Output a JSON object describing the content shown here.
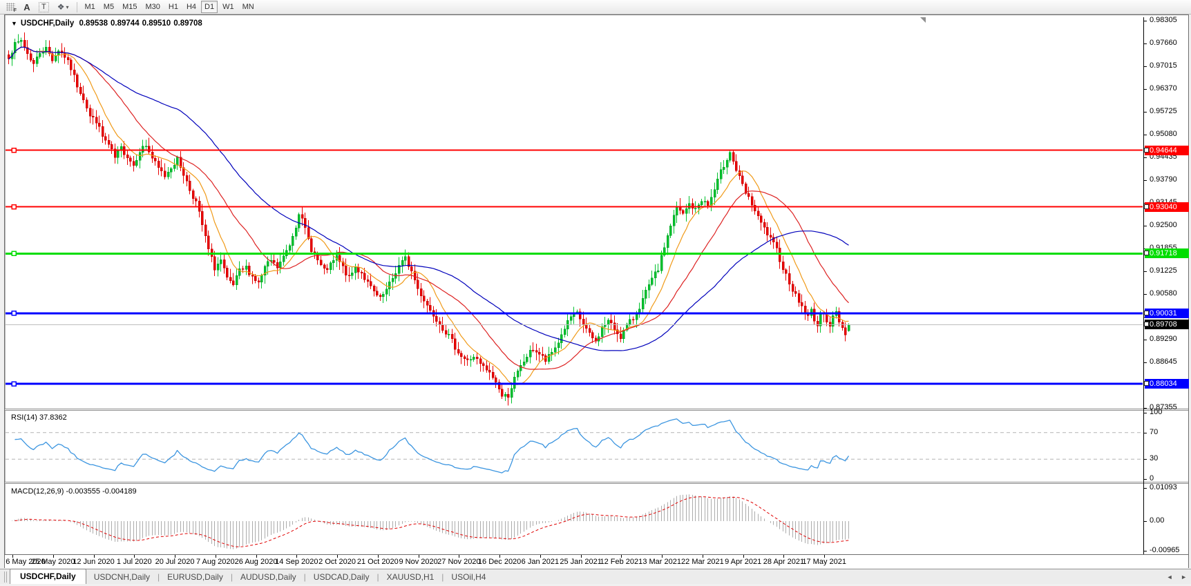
{
  "toolbar": {
    "icons": {
      "f": "F",
      "a": "A",
      "t": "T",
      "obj": "❖",
      "caret": "▾"
    },
    "timeframes": [
      {
        "label": "M1",
        "active": false
      },
      {
        "label": "M5",
        "active": false
      },
      {
        "label": "M15",
        "active": false
      },
      {
        "label": "M30",
        "active": false
      },
      {
        "label": "H1",
        "active": false
      },
      {
        "label": "H4",
        "active": false
      },
      {
        "label": "D1",
        "active": true
      },
      {
        "label": "W1",
        "active": false
      },
      {
        "label": "MN",
        "active": false
      }
    ]
  },
  "chart": {
    "title": {
      "arrow": "▼",
      "symbol": "USDCHF,Daily",
      "open": "0.89538",
      "high": "0.89744",
      "low": "0.89510",
      "close": "0.89708"
    }
  },
  "price_axis": {
    "ticks": [
      "0.98305",
      "0.97660",
      "0.97015",
      "0.96370",
      "0.95725",
      "0.95080",
      "0.94435",
      "0.93790",
      "0.93145",
      "0.92500",
      "0.91855",
      "0.91225",
      "0.90580",
      "0.89935",
      "0.89290",
      "0.88645",
      "0.88000",
      "0.87355"
    ]
  },
  "rsi": {
    "label": "RSI(14) 37.8362",
    "value": 37.8362,
    "ticks": [
      {
        "v": 100,
        "label": "100"
      },
      {
        "v": 70,
        "label": "70"
      },
      {
        "v": 30,
        "label": "30"
      },
      {
        "v": 0,
        "label": "0"
      }
    ],
    "levels": [
      70,
      30
    ],
    "color": "#3b95e0"
  },
  "macd": {
    "label": "MACD(12,26,9) -0.003555 -0.004189",
    "values": [
      -0.003555,
      -0.004189
    ],
    "ticks": [
      {
        "v": 0.01093,
        "label": "0.01093"
      },
      {
        "v": 0,
        "label": "0.00"
      },
      {
        "v": -0.00965,
        "label": "-0.00965"
      }
    ],
    "hist_color": "#ababab",
    "signal_color": "#e00000"
  },
  "tabs": {
    "items": [
      {
        "label": "USDCHF,Daily",
        "active": true
      },
      {
        "label": "USDCNH,Daily",
        "active": false
      },
      {
        "label": "EURUSD,Daily",
        "active": false
      },
      {
        "label": "AUDUSD,Daily",
        "active": false
      },
      {
        "label": "USDCAD,Daily",
        "active": false
      },
      {
        "label": "XAUUSD,H1",
        "active": false
      },
      {
        "label": "USOil,H4",
        "active": false
      }
    ],
    "scroll_left": "◄",
    "scroll_right": "►"
  },
  "chart_data": {
    "type": "candlestick",
    "symbol": "USDCHF",
    "timeframe": "Daily",
    "title": "USDCHF,Daily",
    "ylim": [
      0.87355,
      0.98305
    ],
    "bars": 270,
    "x_labels": [
      "6 May 2020",
      "25 May 2020",
      "12 Jun 2020",
      "1 Jul 2020",
      "20 Jul 2020",
      "7 Aug 2020",
      "26 Aug 2020",
      "14 Sep 2020",
      "2 Oct 2020",
      "21 Oct 2020",
      "9 Nov 2020",
      "27 Nov 2020",
      "16 Dec 2020",
      "6 Jan 2021",
      "25 Jan 2021",
      "12 Feb 2021",
      "3 Mar 2021",
      "22 Mar 2021",
      "9 Apr 2021",
      "28 Apr 2021",
      "17 May 2021"
    ],
    "last_ohlc": {
      "open": 0.89538,
      "high": 0.89744,
      "low": 0.8951,
      "close": 0.89708
    },
    "close_path_anchors": [
      [
        0,
        0.973
      ],
      [
        2,
        0.9762
      ],
      [
        4,
        0.9775
      ],
      [
        6,
        0.9738
      ],
      [
        8,
        0.9708
      ],
      [
        10,
        0.9742
      ],
      [
        12,
        0.9752
      ],
      [
        14,
        0.9722
      ],
      [
        16,
        0.9748
      ],
      [
        18,
        0.973
      ],
      [
        20,
        0.9695
      ],
      [
        22,
        0.9648
      ],
      [
        24,
        0.9612
      ],
      [
        26,
        0.956
      ],
      [
        28,
        0.9548
      ],
      [
        30,
        0.9502
      ],
      [
        32,
        0.9478
      ],
      [
        34,
        0.9442
      ],
      [
        36,
        0.947
      ],
      [
        38,
        0.9448
      ],
      [
        40,
        0.9422
      ],
      [
        42,
        0.9465
      ],
      [
        44,
        0.9478
      ],
      [
        46,
        0.9442
      ],
      [
        48,
        0.9412
      ],
      [
        50,
        0.9392
      ],
      [
        52,
        0.9418
      ],
      [
        54,
        0.9438
      ],
      [
        56,
        0.9398
      ],
      [
        58,
        0.9352
      ],
      [
        60,
        0.9318
      ],
      [
        62,
        0.9252
      ],
      [
        64,
        0.9182
      ],
      [
        66,
        0.9132
      ],
      [
        68,
        0.9152
      ],
      [
        70,
        0.9098
      ],
      [
        72,
        0.9082
      ],
      [
        74,
        0.9122
      ],
      [
        76,
        0.9132
      ],
      [
        78,
        0.9108
      ],
      [
        80,
        0.9088
      ],
      [
        82,
        0.9132
      ],
      [
        84,
        0.9152
      ],
      [
        86,
        0.9132
      ],
      [
        88,
        0.9162
      ],
      [
        90,
        0.9198
      ],
      [
        92,
        0.9252
      ],
      [
        93,
        0.929
      ],
      [
        95,
        0.924
      ],
      [
        97,
        0.9185
      ],
      [
        99,
        0.9152
      ],
      [
        101,
        0.9122
      ],
      [
        103,
        0.9138
      ],
      [
        105,
        0.9162
      ],
      [
        107,
        0.9132
      ],
      [
        109,
        0.9102
      ],
      [
        111,
        0.9132
      ],
      [
        113,
        0.9118
      ],
      [
        115,
        0.9088
      ],
      [
        117,
        0.9062
      ],
      [
        119,
        0.9042
      ],
      [
        121,
        0.9068
      ],
      [
        123,
        0.9102
      ],
      [
        125,
        0.9138
      ],
      [
        127,
        0.9158
      ],
      [
        129,
        0.9122
      ],
      [
        131,
        0.9072
      ],
      [
        133,
        0.9042
      ],
      [
        135,
        0.9012
      ],
      [
        137,
        0.8988
      ],
      [
        139,
        0.8962
      ],
      [
        141,
        0.8938
      ],
      [
        143,
        0.8908
      ],
      [
        145,
        0.8882
      ],
      [
        147,
        0.8868
      ],
      [
        149,
        0.8882
      ],
      [
        151,
        0.8858
      ],
      [
        153,
        0.8842
      ],
      [
        155,
        0.8822
      ],
      [
        157,
        0.8792
      ],
      [
        158,
        0.8768
      ],
      [
        160,
        0.8772
      ],
      [
        162,
        0.8818
      ],
      [
        164,
        0.8852
      ],
      [
        166,
        0.8882
      ],
      [
        168,
        0.8902
      ],
      [
        170,
        0.8888
      ],
      [
        172,
        0.8868
      ],
      [
        174,
        0.8892
      ],
      [
        176,
        0.8922
      ],
      [
        178,
        0.8962
      ],
      [
        180,
        0.8992
      ],
      [
        182,
        0.9002
      ],
      [
        184,
        0.8972
      ],
      [
        186,
        0.8942
      ],
      [
        188,
        0.8922
      ],
      [
        190,
        0.8962
      ],
      [
        192,
        0.8982
      ],
      [
        194,
        0.8958
      ],
      [
        196,
        0.8938
      ],
      [
        198,
        0.8968
      ],
      [
        200,
        0.8988
      ],
      [
        202,
        0.9022
      ],
      [
        204,
        0.9062
      ],
      [
        206,
        0.9098
      ],
      [
        208,
        0.9128
      ],
      [
        210,
        0.9192
      ],
      [
        212,
        0.9252
      ],
      [
        214,
        0.9302
      ],
      [
        216,
        0.9282
      ],
      [
        218,
        0.9312
      ],
      [
        220,
        0.9295
      ],
      [
        222,
        0.9325
      ],
      [
        224,
        0.9308
      ],
      [
        226,
        0.9352
      ],
      [
        228,
        0.9402
      ],
      [
        230,
        0.9442
      ],
      [
        231,
        0.9462
      ],
      [
        232,
        0.9432
      ],
      [
        234,
        0.9385
      ],
      [
        236,
        0.9342
      ],
      [
        238,
        0.9312
      ],
      [
        240,
        0.9272
      ],
      [
        242,
        0.9242
      ],
      [
        244,
        0.9212
      ],
      [
        246,
        0.9182
      ],
      [
        248,
        0.9132
      ],
      [
        250,
        0.9092
      ],
      [
        252,
        0.9052
      ],
      [
        254,
        0.9022
      ],
      [
        256,
        0.8992
      ],
      [
        257,
        0.9012
      ],
      [
        258,
        0.8988
      ],
      [
        259,
        0.8968
      ],
      [
        260,
        0.8995
      ],
      [
        261,
        0.9008
      ],
      [
        262,
        0.8985
      ],
      [
        263,
        0.8968
      ],
      [
        264,
        0.8992
      ],
      [
        265,
        0.9005
      ],
      [
        266,
        0.8982
      ],
      [
        267,
        0.8962
      ],
      [
        268,
        0.8948
      ],
      [
        269,
        0.8971
      ]
    ],
    "moving_averages": [
      {
        "period": 10,
        "color": "#f09a18"
      },
      {
        "period": 25,
        "color": "#dd2222"
      },
      {
        "period": 55,
        "color": "#0000bb"
      }
    ],
    "horizontal_levels": [
      {
        "price": 0.94644,
        "label": "0.94644",
        "color": "#ff0000",
        "width": 2
      },
      {
        "price": 0.9304,
        "label": "0.93040",
        "color": "#ff0000",
        "width": 2
      },
      {
        "price": 0.91718,
        "label": "0.91718",
        "color": "#00dd00",
        "width": 3
      },
      {
        "price": 0.90031,
        "label": "0.90031",
        "color": "#0000ff",
        "width": 3
      },
      {
        "price": 0.88034,
        "label": "0.88034",
        "color": "#0000ff",
        "width": 3
      }
    ],
    "current_price": {
      "price": 0.89708,
      "label": "0.89708",
      "line_color": "#bdbdbd",
      "tag_bg": "#000000"
    },
    "candle_colors": {
      "bull": "#00c22e",
      "bull_edge": "#009a20",
      "bear": "#e80000",
      "bear_edge": "#bf0000"
    }
  }
}
